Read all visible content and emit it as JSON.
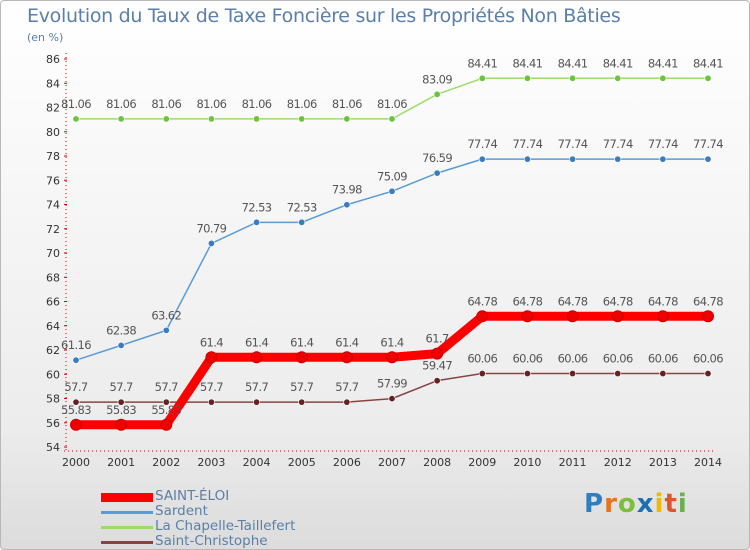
{
  "header": {
    "title": "Evolution du Taux de Taxe Foncière sur les Propriétés Non Bâties",
    "subtitle": "(en %)"
  },
  "logo": {
    "letters": [
      "P",
      "r",
      "o",
      "x",
      "i",
      "t",
      "i"
    ],
    "colors": [
      "#2d7fc1",
      "#e8731a",
      "#7bbf3a",
      "#1a6fb5",
      "#f0b800",
      "#e0552a",
      "#6ab04c"
    ]
  },
  "chart_data": {
    "type": "line",
    "title": "Evolution du Taux de Taxe Foncière sur les Propriétés Non Bâties",
    "ylabel": "(en %)",
    "xlabel": "",
    "categories": [
      "2000",
      "2001",
      "2002",
      "2003",
      "2004",
      "2005",
      "2006",
      "2007",
      "2008",
      "2009",
      "2010",
      "2011",
      "2012",
      "2013",
      "2014"
    ],
    "ylim": [
      54,
      86
    ],
    "yticks": [
      "54",
      "56",
      "58",
      "60",
      "62",
      "64",
      "66",
      "68",
      "70",
      "72",
      "74",
      "76",
      "78",
      "80",
      "82",
      "84",
      "86"
    ],
    "grid": false,
    "legend_position": "bottom-left",
    "series": [
      {
        "name": "SAINT-ÉLOI",
        "color": "#ff0000",
        "marker_color": "#ee0000",
        "width": "thick",
        "values": [
          55.83,
          55.83,
          55.83,
          61.4,
          61.4,
          61.4,
          61.4,
          61.4,
          61.7,
          64.78,
          64.78,
          64.78,
          64.78,
          64.78,
          64.78
        ],
        "labels": [
          "55.83",
          "55.83",
          "55.83",
          "61.4",
          "61.4",
          "61.4",
          "61.4",
          "61.4",
          "61.7",
          "64.78",
          "64.78",
          "64.78",
          "64.78",
          "64.78",
          "64.78"
        ]
      },
      {
        "name": "Sardent",
        "color": "#5b9bd5",
        "marker_color": "#3a7cc0",
        "width": "thin",
        "values": [
          61.16,
          62.38,
          63.62,
          70.79,
          72.53,
          72.53,
          73.98,
          75.09,
          76.59,
          77.74,
          77.74,
          77.74,
          77.74,
          77.74,
          77.74
        ],
        "labels": [
          "61.16",
          "62.38",
          "63.62",
          "70.79",
          "72.53",
          "72.53",
          "73.98",
          "75.09",
          "76.59",
          "77.74",
          "77.74",
          "77.74",
          "77.74",
          "77.74",
          "77.74"
        ]
      },
      {
        "name": "La Chapelle-Taillefert",
        "color": "#99dd66",
        "marker_color": "#6cc43c",
        "width": "thin",
        "values": [
          81.06,
          81.06,
          81.06,
          81.06,
          81.06,
          81.06,
          81.06,
          81.06,
          83.09,
          84.41,
          84.41,
          84.41,
          84.41,
          84.41,
          84.41
        ],
        "labels": [
          "81.06",
          "81.06",
          "81.06",
          "81.06",
          "81.06",
          "81.06",
          "81.06",
          "81.06",
          "83.09",
          "84.41",
          "84.41",
          "84.41",
          "84.41",
          "84.41",
          "84.41"
        ]
      },
      {
        "name": "Saint-Christophe",
        "color": "#884444",
        "marker_color": "#662222",
        "width": "thin",
        "values": [
          57.7,
          57.7,
          57.7,
          57.7,
          57.7,
          57.7,
          57.7,
          57.99,
          59.47,
          60.06,
          60.06,
          60.06,
          60.06,
          60.06,
          60.06
        ],
        "labels": [
          "57.7",
          "57.7",
          "57.7",
          "57.7",
          "57.7",
          "57.7",
          "57.7",
          "57.99",
          "59.47",
          "60.06",
          "60.06",
          "60.06",
          "60.06",
          "60.06",
          "60.06"
        ]
      }
    ]
  }
}
